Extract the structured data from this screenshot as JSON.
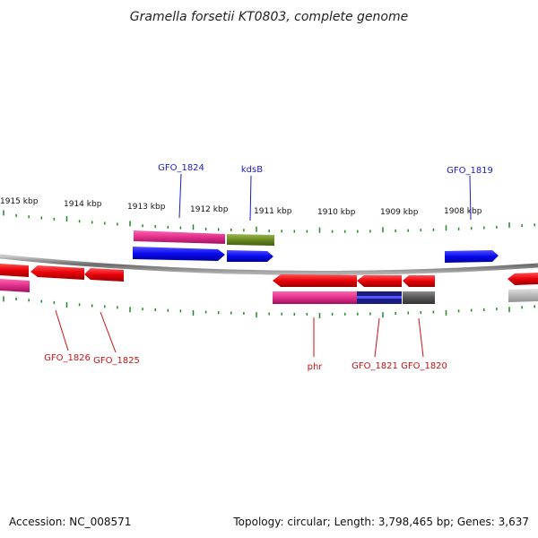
{
  "title": "Gramella forsetii KT0803, complete genome",
  "scale_labels": [
    "1915 kbp",
    "1914 kbp",
    "1913 kbp",
    "1912 kbp",
    "1911 kbp",
    "1910 kbp",
    "1909 kbp",
    "1908 kbp"
  ],
  "gene_labels": {
    "gfo_1824": "GFO_1824",
    "kdsb": "kdsB",
    "gfo_1819": "GFO_1819",
    "gfo_1826": "GFO_1826",
    "gfo_1825": "GFO_1825",
    "phr": "phr",
    "gfo_1821": "GFO_1821",
    "gfo_1820": "GFO_1820"
  },
  "footer": {
    "accession": "Accession: NC_008571",
    "stats": "Topology: circular; Length: 3,798,465 bp; Genes: 3,637"
  },
  "colors": {
    "forward_cds": "#0a0af0",
    "reverse_cds": "#e8000a",
    "pink_feature": "#e0308a",
    "olive_feature": "#6a8a20",
    "dark_feature": "#555555",
    "light_grey_feature": "#b8b8b8",
    "navy_feature": "#1a1a80",
    "tick": "#228822"
  }
}
